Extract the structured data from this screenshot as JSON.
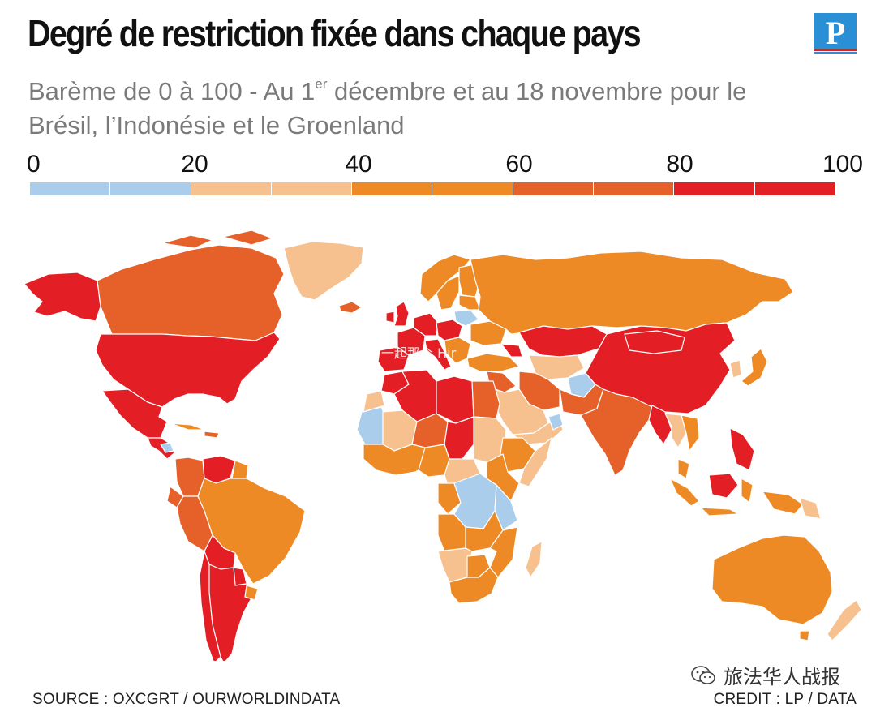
{
  "header": {
    "title": "Degré de restriction fixée dans chaque pays",
    "subtitle_part1": "Barème de 0 à 100 - Au 1",
    "subtitle_sup": "er",
    "subtitle_part2": " décembre et au 18 novembre pour le Brésil, l’Indonésie et le Groenland",
    "logo_letter": "P"
  },
  "legend": {
    "labels": [
      "0",
      "20",
      "40",
      "60",
      "80",
      "100"
    ],
    "steps": [
      {
        "range": "0-20",
        "color": "#a9cdeb"
      },
      {
        "range": "20-40",
        "color": "#f7c08f"
      },
      {
        "range": "40-60",
        "color": "#ee8a25"
      },
      {
        "range": "60-80",
        "color": "#e6602a"
      },
      {
        "range": "80-100",
        "color": "#e31e25"
      }
    ]
  },
  "map": {
    "colors": {
      "light_blue": "#a9cdeb",
      "peach": "#f7c08f",
      "orange": "#ee8a25",
      "dark_orange": "#e6602a",
      "red": "#e31e25"
    },
    "watermark_text": "一起那个 Hir"
  },
  "footer": {
    "source": "SOURCE : OXCGRT / OURWORLDINDATA",
    "credit": "CREDIT : LP / DATA",
    "wechat_account": "旅法华人战报"
  }
}
